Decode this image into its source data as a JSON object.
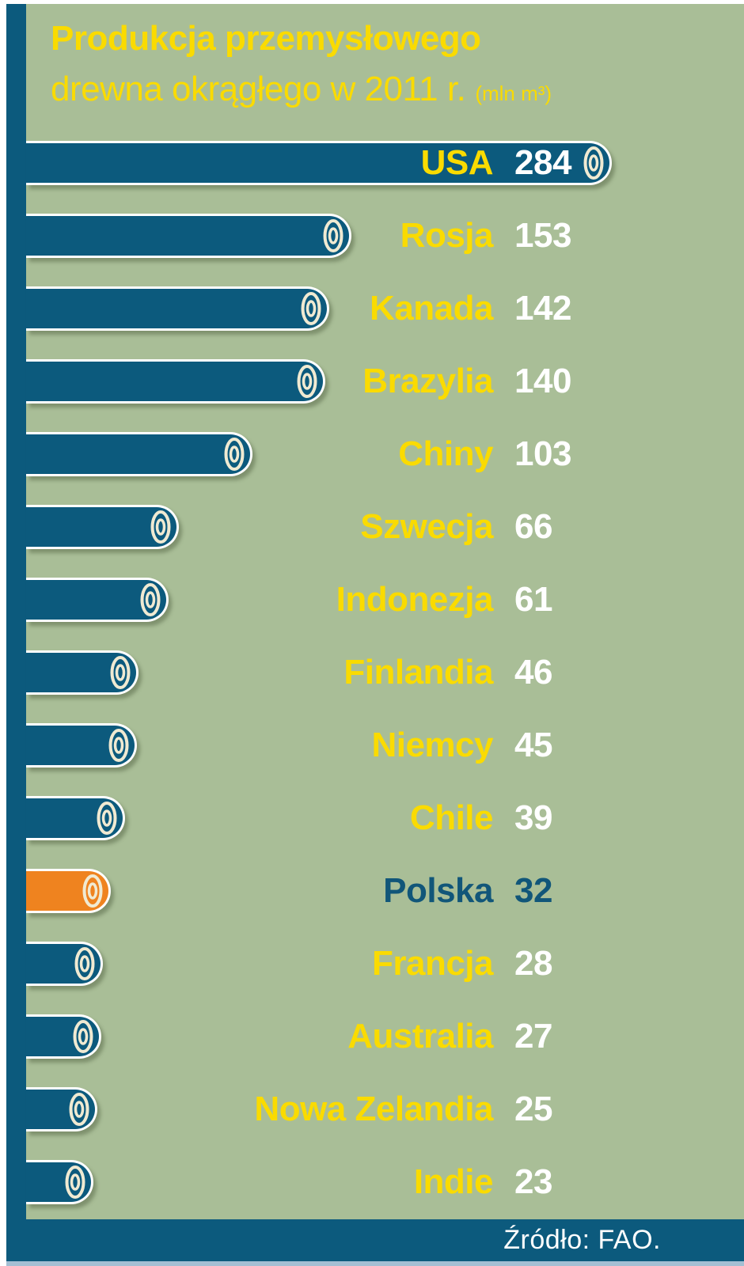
{
  "title": {
    "line1": "Produkcja przemysłowego",
    "line2": "drewna okrągłego w 2011 r.",
    "unit": "(mln m³)"
  },
  "source": "Źródło: FAO.",
  "chart_data": {
    "type": "bar",
    "orientation": "horizontal",
    "title": "Produkcja przemysłowego drewna okrągłego w 2011 r.",
    "unit": "mln m³",
    "categories": [
      "USA",
      "Rosja",
      "Kanada",
      "Brazylia",
      "Chiny",
      "Szwecja",
      "Indonezja",
      "Finlandia",
      "Niemcy",
      "Chile",
      "Polska",
      "Francja",
      "Australia",
      "Nowa Zelandia",
      "Indie"
    ],
    "values": [
      284,
      153,
      142,
      140,
      103,
      66,
      61,
      46,
      45,
      39,
      32,
      28,
      27,
      25,
      23
    ],
    "highlight_category": "Polska",
    "legend": "none",
    "grid": false,
    "source": "Źródło: FAO.",
    "colors": {
      "bar": "#0c5a7d",
      "highlight_bar": "#ef831f",
      "country_label": "#fadb00",
      "value_label": "#ffffff",
      "highlight_text": "#115679",
      "background": "#a9be97",
      "ring": "#f0ead2",
      "panel_edge": "#a4bfd3"
    }
  }
}
